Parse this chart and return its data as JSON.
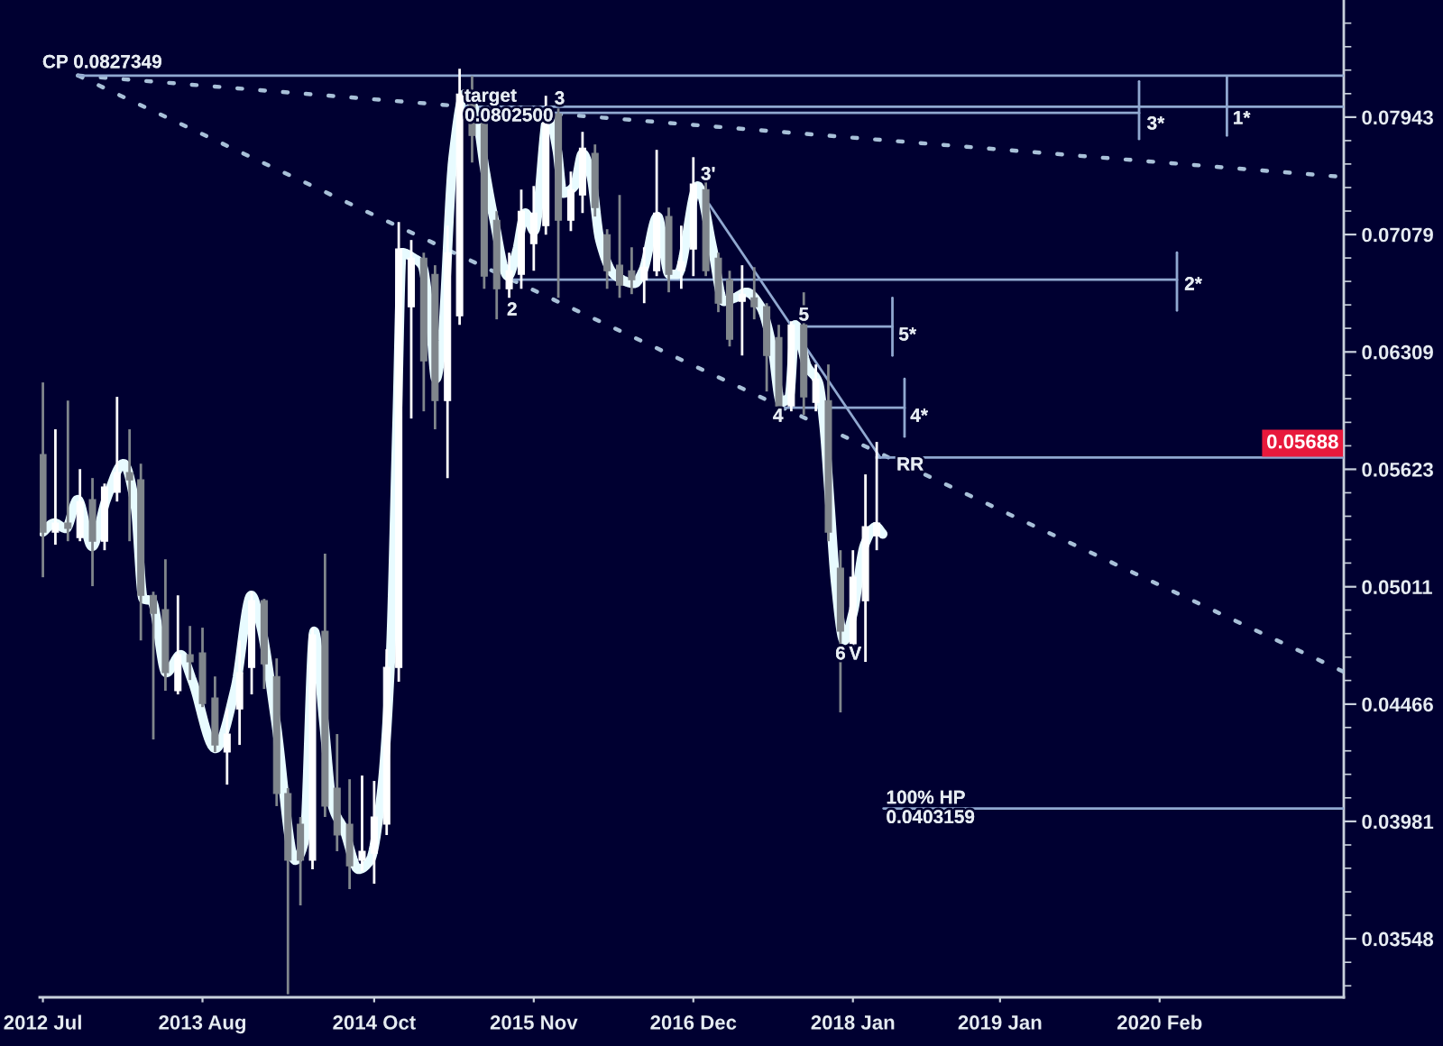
{
  "chart_data": {
    "type": "candlestick",
    "log": true,
    "xlim": [
      "2012-06-23",
      "2021-05-03"
    ],
    "ylim": [
      0.0335,
      0.0891
    ],
    "xticks": [
      {
        "value": "2012-07",
        "label": "2012 Jul"
      },
      {
        "value": "2013-08",
        "label": "2013 Aug"
      },
      {
        "value": "2014-10",
        "label": "2014 Oct"
      },
      {
        "value": "2015-11",
        "label": "2015 Nov"
      },
      {
        "value": "2016-12",
        "label": "2016 Dec"
      },
      {
        "value": "2018-01",
        "label": "2018 Jan"
      },
      {
        "value": "2019-01",
        "label": "2019 Jan"
      },
      {
        "value": "2020-02",
        "label": "2020 Feb"
      }
    ],
    "yticks": [
      0.03548,
      0.03981,
      0.04466,
      0.05011,
      0.05623,
      0.06309,
      0.07079,
      0.07943,
      {
        "value": 0.03388,
        "label": null
      },
      {
        "value": 0.03467,
        "label": null
      },
      {
        "value": 0.03631,
        "label": null
      },
      {
        "value": 0.03715,
        "label": null
      },
      {
        "value": 0.03802,
        "label": null
      },
      {
        "value": 0.0389,
        "label": null
      },
      {
        "value": 0.04074,
        "label": null
      },
      {
        "value": 0.04169,
        "label": null
      },
      {
        "value": 0.04266,
        "label": null
      },
      {
        "value": 0.04365,
        "label": null
      },
      {
        "value": 0.04571,
        "label": null
      },
      {
        "value": 0.04677,
        "label": null
      },
      {
        "value": 0.04786,
        "label": null
      },
      {
        "value": 0.04898,
        "label": null
      },
      {
        "value": 0.05129,
        "label": null
      },
      {
        "value": 0.05248,
        "label": null
      },
      {
        "value": 0.0537,
        "label": null
      },
      {
        "value": 0.05495,
        "label": null
      },
      {
        "value": 0.05754,
        "label": null
      },
      {
        "value": 0.05888,
        "label": null
      },
      {
        "value": 0.06026,
        "label": null
      },
      {
        "value": 0.06166,
        "label": null
      },
      {
        "value": 0.06457,
        "label": null
      },
      {
        "value": 0.06607,
        "label": null
      },
      {
        "value": 0.06761,
        "label": null
      },
      {
        "value": 0.06918,
        "label": null
      },
      {
        "value": 0.07244,
        "label": null
      },
      {
        "value": 0.07413,
        "label": null
      },
      {
        "value": 0.07586,
        "label": null
      },
      {
        "value": 0.07762,
        "label": null
      },
      {
        "value": 0.08128,
        "label": null
      },
      {
        "value": 0.08318,
        "label": null
      },
      {
        "value": 0.08511,
        "label": null
      },
      {
        "value": 0.0871,
        "label": null
      }
    ],
    "series": [
      {
        "x": [
          "2012-07",
          "2012-08",
          "2012-09",
          "2012-10",
          "2012-11",
          "2012-12",
          "2013-01",
          "2013-02",
          "2013-03",
          "2013-04",
          "2013-05",
          "2013-06",
          "2013-07",
          "2013-08",
          "2013-09",
          "2013-10",
          "2013-11",
          "2013-12",
          "2014-01",
          "2014-02",
          "2014-03",
          "2014-04",
          "2014-05",
          "2014-06",
          "2014-07",
          "2014-08",
          "2014-09",
          "2014-10",
          "2014-11",
          "2014-12",
          "2015-01",
          "2015-02",
          "2015-03",
          "2015-04",
          "2015-05",
          "2015-06",
          "2015-07",
          "2015-08",
          "2015-09",
          "2015-10",
          "2015-11",
          "2015-12",
          "2016-01",
          "2016-02",
          "2016-03",
          "2016-04",
          "2016-05",
          "2016-06",
          "2016-07",
          "2016-08",
          "2016-09",
          "2016-10",
          "2016-11",
          "2016-12",
          "2017-01",
          "2017-02",
          "2017-03",
          "2017-04",
          "2017-05",
          "2017-06",
          "2017-07",
          "2017-08",
          "2017-09",
          "2017-10",
          "2017-11",
          "2017-12",
          "2018-01",
          "2018-02",
          "2018-03"
        ],
        "ohlc": [
          [
            0.05705,
            0.06123,
            0.05058,
            0.05287
          ],
          [
            0.05287,
            0.05848,
            0.05222,
            0.05334
          ],
          [
            0.05334,
            0.06015,
            0.0524,
            0.05306
          ],
          [
            0.05259,
            0.05624,
            0.0524,
            0.05448
          ],
          [
            0.05458,
            0.05575,
            0.05014,
            0.0524
          ],
          [
            0.0524,
            0.05545,
            0.05194,
            0.05526
          ],
          [
            0.05497,
            0.06037,
            0.05448,
            0.05605
          ],
          [
            0.05605,
            0.05848,
            0.0524,
            0.05565
          ],
          [
            0.05565,
            0.05654,
            0.04754,
            0.04969
          ],
          [
            0.04969,
            0.04987,
            0.04314,
            0.04882
          ],
          [
            0.049,
            0.05148,
            0.04525,
            0.04606
          ],
          [
            0.04525,
            0.04969,
            0.04509,
            0.04688
          ],
          [
            0.04688,
            0.04822,
            0.04573,
            0.04655
          ],
          [
            0.04696,
            0.04814,
            0.04453,
            0.04469
          ],
          [
            0.04493,
            0.04589,
            0.04261,
            0.04291
          ],
          [
            0.04261,
            0.04445,
            0.04127,
            0.04337
          ],
          [
            0.04445,
            0.04754,
            0.04291,
            0.04606
          ],
          [
            0.0463,
            0.04987,
            0.04509,
            0.04943
          ],
          [
            0.04943,
            0.04952,
            0.04533,
            0.04646
          ],
          [
            0.04589,
            0.04671,
            0.04041,
            0.04091
          ],
          [
            0.04091,
            0.04113,
            0.0336,
            0.03832
          ],
          [
            0.0397,
            0.03998,
            0.03666,
            0.03832
          ],
          [
            0.03832,
            0.04814,
            0.03798,
            0.0478
          ],
          [
            0.04797,
            0.05176,
            0.03998,
            0.04041
          ],
          [
            0.04113,
            0.04337,
            0.03866,
            0.03928
          ],
          [
            0.0397,
            0.04149,
            0.03725,
            0.03811
          ],
          [
            0.03832,
            0.04164,
            0.03791,
            0.03866
          ],
          [
            0.03859,
            0.04142,
            0.03745,
            0.03998
          ],
          [
            0.0397,
            0.04713,
            0.03928,
            0.0463
          ],
          [
            0.0463,
            0.07166,
            0.04565,
            0.06979
          ],
          [
            0.06595,
            0.07041,
            0.0591,
            0.06917
          ],
          [
            0.06917,
            0.06954,
            0.05952,
            0.06254
          ],
          [
            0.06808,
            0.06869,
            0.05848,
            0.06015
          ],
          [
            0.06015,
            0.07141,
            0.05575,
            0.06954
          ],
          [
            0.06537,
            0.08329,
            0.06479,
            0.08125
          ],
          [
            0.08125,
            0.0827,
            0.07597,
            0.07801
          ],
          [
            0.07899,
            0.08011,
            0.06712,
            0.06796
          ],
          [
            0.07179,
            0.07243,
            0.06514,
            0.06712
          ],
          [
            0.06712,
            0.06954,
            0.06653,
            0.06832
          ],
          [
            0.06808,
            0.07398,
            0.06712,
            0.07243
          ],
          [
            0.07016,
            0.07424,
            0.06832,
            0.0723
          ],
          [
            0.07141,
            0.08111,
            0.07078,
            0.07969
          ],
          [
            0.07969,
            0.08011,
            0.06653,
            0.07179
          ],
          [
            0.07179,
            0.0753,
            0.07103,
            0.07398
          ],
          [
            0.07359,
            0.07829,
            0.0723,
            0.07705
          ],
          [
            0.07665,
            0.07733,
            0.07205,
            0.07269
          ],
          [
            0.07078,
            0.07116,
            0.06712,
            0.06832
          ],
          [
            0.06869,
            0.07359,
            0.06653,
            0.06736
          ],
          [
            0.06832,
            0.06991,
            0.06677,
            0.06772
          ],
          [
            0.06772,
            0.06991,
            0.06618,
            0.06856
          ],
          [
            0.06832,
            0.07692,
            0.06796,
            0.0723
          ],
          [
            0.07205,
            0.07269,
            0.06689,
            0.06808
          ],
          [
            0.06832,
            0.07141,
            0.06712,
            0.06893
          ],
          [
            0.06979,
            0.07637,
            0.06796,
            0.07438
          ],
          [
            0.07398,
            0.07464,
            0.06796,
            0.06832
          ],
          [
            0.06917,
            0.06954,
            0.0656,
            0.06618
          ],
          [
            0.06772,
            0.06832,
            0.06343,
            0.06388
          ],
          [
            0.0663,
            0.06869,
            0.06287,
            0.06677
          ],
          [
            0.06653,
            0.06856,
            0.06514,
            0.06595
          ],
          [
            0.06595,
            0.06618,
            0.06069,
            0.06287
          ],
          [
            0.06399,
            0.06479,
            0.05899,
            0.05983
          ],
          [
            0.05983,
            0.06502,
            0.05952,
            0.06479
          ],
          [
            0.06479,
            0.06689,
            0.05931,
            0.06037
          ],
          [
            0.06005,
            0.06232,
            0.05952,
            0.06144
          ],
          [
            0.06015,
            0.06232,
            0.0524,
            0.05287
          ],
          [
            0.05103,
            0.05194,
            0.0443,
            0.04797
          ],
          [
            0.04738,
            0.05194,
            0.04713,
            0.05058
          ],
          [
            0.04943,
            0.05595,
            0.04655,
            0.05315
          ],
          [
            0.05268,
            0.05776,
            0.05194,
            0.05334
          ]
        ],
        "colors": [
          "#80868c",
          "#ffffff",
          "#80868c",
          "#ffffff",
          "#80868c",
          "#ffffff",
          "#ffffff",
          "#80868c",
          "#80868c",
          "#80868c",
          "#80868c",
          "#ffffff",
          "#80868c",
          "#80868c",
          "#80868c",
          "#ffffff",
          "#ffffff",
          "#ffffff",
          "#80868c",
          "#80868c",
          "#80868c",
          "#80868c",
          "#ffffff",
          "#80868c",
          "#80868c",
          "#80868c",
          "#ffffff",
          "#ffffff",
          "#ffffff",
          "#ffffff",
          "#ffffff",
          "#80868c",
          "#80868c",
          "#ffffff",
          "#ffffff",
          "#80868c",
          "#80868c",
          "#80868c",
          "#ffffff",
          "#ffffff",
          "#ffffff",
          "#ffffff",
          "#80868c",
          "#ffffff",
          "#ffffff",
          "#80868c",
          "#80868c",
          "#80868c",
          "#80868c",
          "#ffffff",
          "#ffffff",
          "#80868c",
          "#ffffff",
          "#ffffff",
          "#80868c",
          "#80868c",
          "#80868c",
          "#ffffff",
          "#80868c",
          "#80868c",
          "#80868c",
          "#ffffff",
          "#80868c",
          "#ffffff",
          "#80868c",
          "#80868c",
          "#ffffff",
          "#ffffff",
          "#ffffff"
        ]
      },
      {
        "type": "line",
        "color": "#e8fbff",
        "x": [
          "2012-07-01",
          "2012-07-29",
          "2012-08-27",
          "2012-09-25",
          "2012-10-31",
          "2012-12-05",
          "2013-01-17",
          "2013-02-15",
          "2013-03-07",
          "2013-03-28",
          "2013-05-03",
          "2013-06-08",
          "2013-07-06",
          "2013-09-02",
          "2013-10-21",
          "2013-11-30",
          "2013-12-24",
          "2014-01-30",
          "2014-03-19",
          "2014-04-10",
          "2014-05-05",
          "2014-05-29",
          "2014-06-20",
          "2014-07-18",
          "2014-08-23",
          "2014-09-21",
          "2014-10-19",
          "2014-11-10",
          "2014-11-27",
          "2014-12-09",
          "2015-01-07",
          "2015-01-28",
          "2015-02-18",
          "2015-03-03",
          "2015-03-17",
          "2015-04-15",
          "2015-05-13",
          "2015-06-11",
          "2015-07-02",
          "2015-07-24",
          "2015-08-29",
          "2015-09-19",
          "2015-10-11",
          "2015-11-02",
          "2015-12-07",
          "2015-12-29",
          "2016-01-12",
          "2016-02-10",
          "2016-03-01",
          "2016-03-22",
          "2016-04-13",
          "2016-05-18",
          "2016-07-08",
          "2016-07-29",
          "2016-09-03",
          "2016-10-02",
          "2016-10-23",
          "2016-12-12",
          "2017-01-17",
          "2017-02-14",
          "2017-03-14",
          "2017-04-12",
          "2017-05-17",
          "2017-06-15",
          "2017-07-06",
          "2017-07-27",
          "2017-08-11",
          "2017-09-09",
          "2017-10-07",
          "2017-10-21",
          "2017-11-05",
          "2017-11-19",
          "2017-12-10",
          "2018-01-01",
          "2018-01-30",
          "2018-02-27",
          "2018-03-16"
        ],
        "values": [
          0.05287,
          0.05334,
          0.05306,
          0.05458,
          0.05213,
          0.05458,
          0.05654,
          0.05429,
          0.04952,
          0.04943,
          0.04606,
          0.04688,
          0.04573,
          0.04276,
          0.04533,
          0.04969,
          0.04822,
          0.04391,
          0.03832,
          0.039,
          0.04797,
          0.04391,
          0.04041,
          0.03949,
          0.03798,
          0.03832,
          0.04091,
          0.04655,
          0.05899,
          0.06954,
          0.06917,
          0.06869,
          0.06479,
          0.06144,
          0.06332,
          0.07637,
          0.08125,
          0.07969,
          0.07557,
          0.07205,
          0.06796,
          0.06954,
          0.0723,
          0.07103,
          0.07969,
          0.07692,
          0.07372,
          0.07424,
          0.07665,
          0.07504,
          0.07041,
          0.06808,
          0.06748,
          0.06832,
          0.07205,
          0.06808,
          0.06808,
          0.07424,
          0.06991,
          0.0663,
          0.06653,
          0.06689,
          0.06595,
          0.06332,
          0.06005,
          0.06037,
          0.06479,
          0.06221,
          0.06123,
          0.05879,
          0.05429,
          0.05031,
          0.04754,
          0.04882,
          0.05222,
          0.05315,
          0.05277
        ]
      },
      {
        "type": "line",
        "color": "#a8c0d8",
        "line_style": "dotted",
        "x": [
          "2012-09-26",
          "2021-05-03"
        ],
        "values": [
          0.0827349,
          0.0749
        ]
      },
      {
        "type": "line",
        "color": "#a8c0d8",
        "line_style": "dotted",
        "x": [
          "2012-09-26",
          "2021-05-03"
        ],
        "values": [
          0.0827349,
          0.0461
        ]
      },
      {
        "type": "line",
        "color": "#90a8d0",
        "x": [
          "2012-09-26",
          "2021-05-03"
        ],
        "values": [
          0.0827349,
          0.0827349
        ]
      },
      {
        "type": "line",
        "color": "#90a8d0",
        "x": [
          "2015-05-07",
          "2021-05-03"
        ],
        "values": [
          0.08025,
          0.08025
        ]
      },
      {
        "type": "line",
        "color": "#90a8d0",
        "x": [
          "2015-12-16",
          "2019-12-12"
        ],
        "values": [
          0.07976,
          0.07976
        ]
      },
      {
        "type": "line",
        "color": "#90a8d0",
        "x": [
          "2019-12-12",
          "2019-12-12"
        ],
        "values": [
          0.08226,
          0.07774
        ]
      },
      {
        "type": "line",
        "color": "#90a8d0",
        "x": [
          "2020-07-17",
          "2020-07-17"
        ],
        "values": [
          0.0827,
          0.07801
        ]
      },
      {
        "type": "line",
        "color": "#90a8d0",
        "x": [
          "2015-09-04",
          "2020-03-15"
        ],
        "values": [
          0.06772,
          0.06772
        ]
      },
      {
        "type": "line",
        "color": "#90a8d0",
        "x": [
          "2020-03-15",
          "2020-03-15"
        ],
        "values": [
          0.06954,
          0.06571
        ]
      },
      {
        "type": "line",
        "color": "#90a8d0",
        "x": [
          "2017-09-09",
          "2018-04-09"
        ],
        "values": [
          0.06468,
          0.06468
        ]
      },
      {
        "type": "line",
        "color": "#90a8d0",
        "x": [
          "2018-04-09",
          "2018-04-09"
        ],
        "values": [
          0.06653,
          0.06287
        ]
      },
      {
        "type": "line",
        "color": "#90a8d0",
        "x": [
          "2017-07-14",
          "2018-05-09"
        ],
        "values": [
          0.05973,
          0.05973
        ]
      },
      {
        "type": "line",
        "color": "#90a8d0",
        "x": [
          "2018-05-09",
          "2018-05-09"
        ],
        "values": [
          0.06144,
          0.05806
        ]
      },
      {
        "type": "line",
        "color": "#90a8d0",
        "x": [
          "2017-01-09",
          "2018-03-10"
        ],
        "values": [
          0.07294,
          0.05688
        ]
      },
      {
        "type": "line",
        "color": "#90a8d0",
        "x": [
          "2018-03-18",
          "2021-05-03"
        ],
        "values": [
          0.0403159,
          0.0403159
        ]
      }
    ],
    "ref_lines": [
      {
        "axis": "y",
        "value": 0.05688,
        "label": "0.05688"
      }
    ],
    "annotations": [
      "CP 0.0827349",
      {
        "text": "target\n0.0802500",
        "x": "2015-05-07",
        "y": 0.08025
      },
      {
        "text": "3",
        "x": "2015-12-16",
        "y": 0.08082
      },
      {
        "text": "3'",
        "x": "2016-12-13",
        "y": 0.07504
      },
      {
        "text": "2",
        "x": "2015-08-20",
        "y": 0.06571
      },
      {
        "text": "2*",
        "x": "2020-03-27",
        "y": 0.06736
      },
      {
        "text": "5",
        "x": "2017-08-13",
        "y": 0.06537
      },
      {
        "text": "5*",
        "x": "2018-04-18",
        "y": 0.06411
      },
      {
        "text": "4",
        "x": "2017-06-10",
        "y": 0.0592
      },
      {
        "text": "4*",
        "x": "2018-05-17",
        "y": 0.0592
      },
      {
        "text": "RR",
        "x": "2018-04-13",
        "y": 0.05644
      },
      {
        "text": "6",
        "x": "2017-11-12",
        "y": 0.04688
      },
      {
        "text": "V",
        "x": "2017-12-16",
        "y": 0.04688
      },
      {
        "text": "3*",
        "x": "2019-12-25",
        "y": 0.07885
      },
      {
        "text": "1*",
        "x": "2020-07-25",
        "y": 0.07927
      },
      {
        "text": "100% HP\n0.0403159",
        "x": "2018-03-18",
        "y": 0.0403159
      }
    ]
  }
}
